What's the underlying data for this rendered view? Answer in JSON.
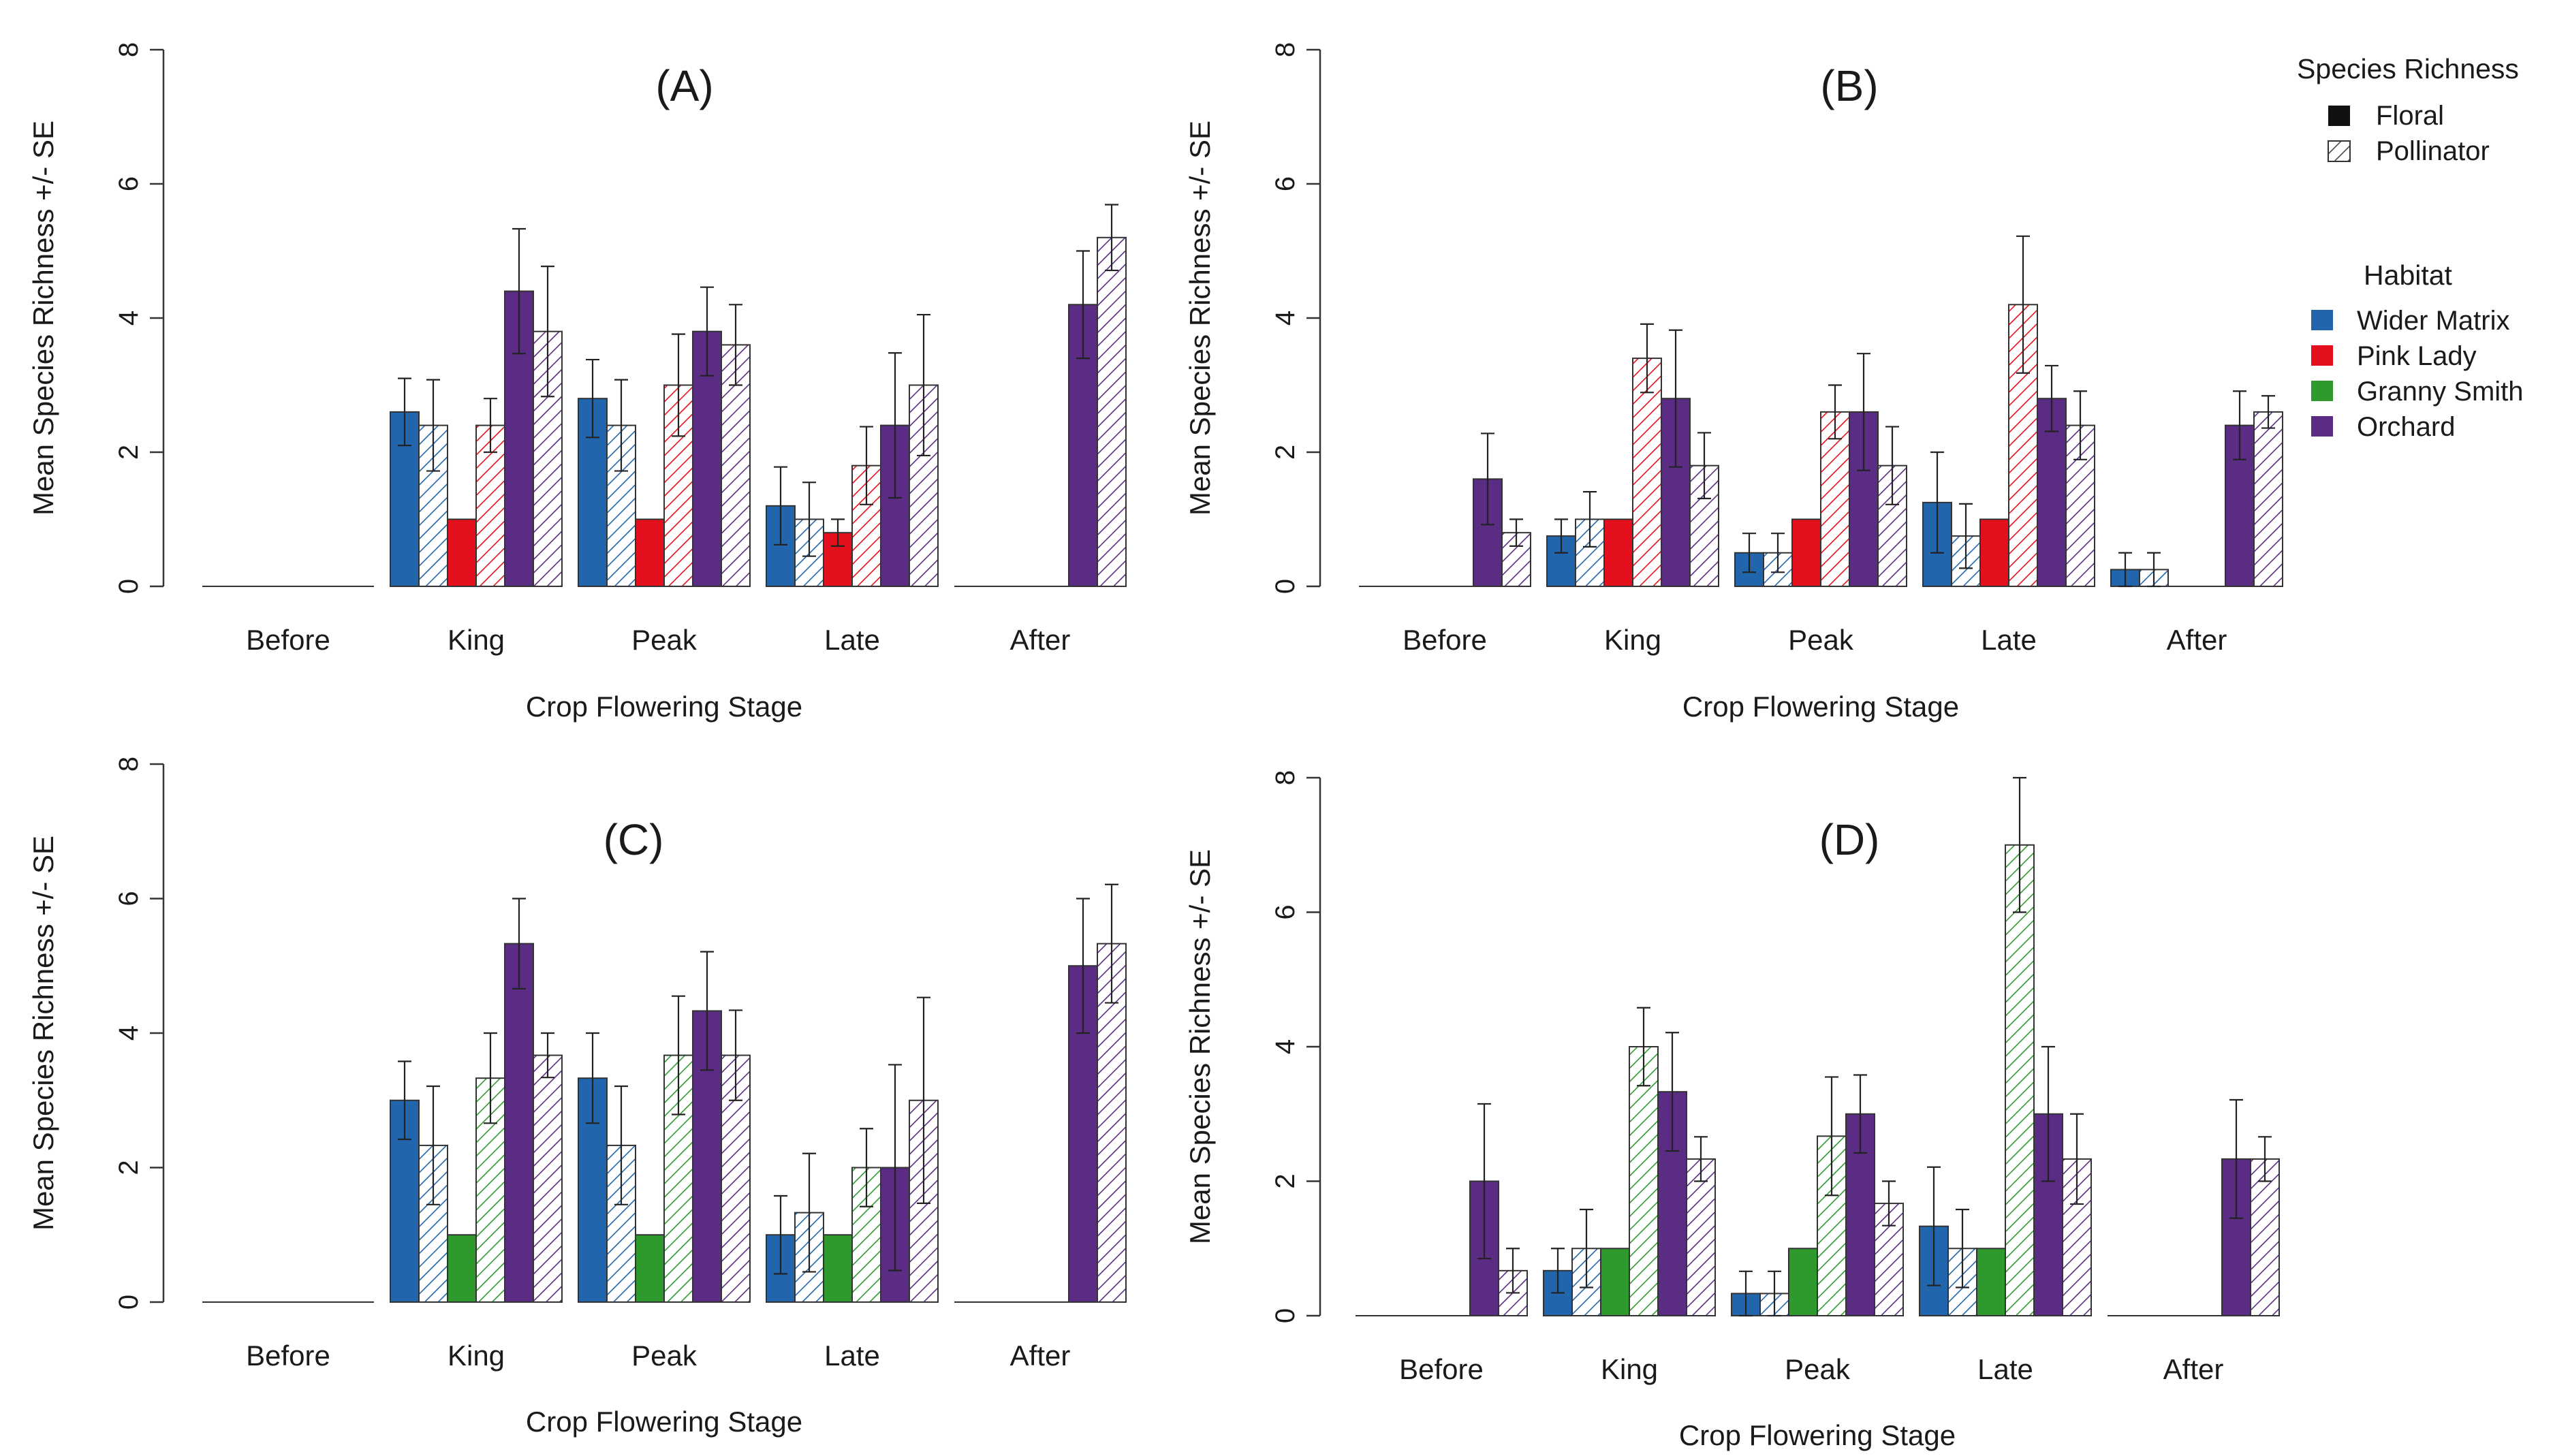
{
  "figure": {
    "colors": {
      "Wider Matrix": "#2166ac",
      "Pink Lady": "#e4101e",
      "Granny Smith": "#2e9a2e",
      "Orchard": "#5b2c83"
    }
  },
  "legend": {
    "richness_title": "Species Richness",
    "richness_items": [
      "Floral",
      "Pollinator"
    ],
    "habitat_title": "Habitat",
    "habitat_items": [
      "Wider Matrix",
      "Pink Lady",
      "Granny Smith",
      "Orchard"
    ]
  },
  "chart_data": [
    {
      "type": "bar",
      "panel": "A",
      "title": "(A)",
      "xlabel": "Crop Flowering Stage",
      "ylabel": "Mean Species Richness +/- SE",
      "ylim": [
        0,
        8
      ],
      "yticks": [
        0,
        2,
        4,
        6,
        8
      ],
      "categories": [
        "Before",
        "King",
        "Peak",
        "Late",
        "After"
      ],
      "series": [
        {
          "habitat": "Wider Matrix",
          "type": "Floral",
          "values": [
            0,
            2.6,
            2.8,
            1.2,
            0
          ],
          "se": [
            0,
            0.5,
            0.58,
            0.58,
            0
          ]
        },
        {
          "habitat": "Wider Matrix",
          "type": "Pollinator",
          "values": [
            0,
            2.4,
            2.4,
            1.0,
            0
          ],
          "se": [
            0,
            0.68,
            0.68,
            0.55,
            0
          ]
        },
        {
          "habitat": "Pink Lady",
          "type": "Floral",
          "values": [
            0,
            1.0,
            1.0,
            0.8,
            0
          ],
          "se": [
            0,
            0,
            0,
            0.2,
            0
          ]
        },
        {
          "habitat": "Pink Lady",
          "type": "Pollinator",
          "values": [
            0,
            2.4,
            3.0,
            1.8,
            0
          ],
          "se": [
            0,
            0.4,
            0.76,
            0.58,
            0
          ]
        },
        {
          "habitat": "Orchard",
          "type": "Floral",
          "values": [
            0,
            4.4,
            3.8,
            2.4,
            4.2
          ],
          "se": [
            0,
            0.93,
            0.66,
            1.08,
            0.8
          ]
        },
        {
          "habitat": "Orchard",
          "type": "Pollinator",
          "values": [
            0,
            3.8,
            3.6,
            3.0,
            5.2
          ],
          "se": [
            0,
            0.97,
            0.6,
            1.05,
            0.49
          ]
        }
      ]
    },
    {
      "type": "bar",
      "panel": "B",
      "title": "(B)",
      "xlabel": "Crop Flowering Stage",
      "ylabel": "Mean Species Richness +/- SE",
      "ylim": [
        0,
        8
      ],
      "yticks": [
        0,
        2,
        4,
        6,
        8
      ],
      "categories": [
        "Before",
        "King",
        "Peak",
        "Late",
        "After"
      ],
      "series": [
        {
          "habitat": "Wider Matrix",
          "type": "Floral",
          "values": [
            0,
            0.75,
            0.5,
            1.25,
            0.25
          ],
          "se": [
            0,
            0.25,
            0.29,
            0.75,
            0.25
          ]
        },
        {
          "habitat": "Wider Matrix",
          "type": "Pollinator",
          "values": [
            0,
            1.0,
            0.5,
            0.75,
            0.25
          ],
          "se": [
            0,
            0.41,
            0.29,
            0.48,
            0.25
          ]
        },
        {
          "habitat": "Pink Lady",
          "type": "Floral",
          "values": [
            0,
            1.0,
            1.0,
            1.0,
            0
          ],
          "se": [
            0,
            0,
            0,
            0,
            0
          ]
        },
        {
          "habitat": "Pink Lady",
          "type": "Pollinator",
          "values": [
            0,
            3.4,
            2.6,
            4.2,
            0
          ],
          "se": [
            0,
            0.51,
            0.4,
            1.02,
            0
          ]
        },
        {
          "habitat": "Orchard",
          "type": "Floral",
          "values": [
            1.6,
            2.8,
            2.6,
            2.8,
            2.4
          ],
          "se": [
            0.68,
            1.02,
            0.87,
            0.49,
            0.51
          ]
        },
        {
          "habitat": "Orchard",
          "type": "Pollinator",
          "values": [
            0.8,
            1.8,
            1.8,
            2.4,
            2.6
          ],
          "se": [
            0.2,
            0.49,
            0.58,
            0.51,
            0.24
          ]
        }
      ]
    },
    {
      "type": "bar",
      "panel": "C",
      "title": "(C)",
      "xlabel": "Crop Flowering Stage",
      "ylabel": "Mean Species Richness +/- SE",
      "ylim": [
        0,
        8
      ],
      "yticks": [
        0,
        2,
        4,
        6,
        8
      ],
      "categories": [
        "Before",
        "King",
        "Peak",
        "Late",
        "After"
      ],
      "series": [
        {
          "habitat": "Wider Matrix",
          "type": "Floral",
          "values": [
            0,
            3.0,
            3.33,
            1.0,
            0
          ],
          "se": [
            0,
            0.58,
            0.67,
            0.58,
            0
          ]
        },
        {
          "habitat": "Wider Matrix",
          "type": "Pollinator",
          "values": [
            0,
            2.33,
            2.33,
            1.33,
            0
          ],
          "se": [
            0,
            0.88,
            0.88,
            0.88,
            0
          ]
        },
        {
          "habitat": "Granny Smith",
          "type": "Floral",
          "values": [
            0,
            1.0,
            1.0,
            1.0,
            0
          ],
          "se": [
            0,
            0,
            0,
            0,
            0
          ]
        },
        {
          "habitat": "Granny Smith",
          "type": "Pollinator",
          "values": [
            0,
            3.33,
            3.67,
            2.0,
            0
          ],
          "se": [
            0,
            0.67,
            0.88,
            0.58,
            0
          ]
        },
        {
          "habitat": "Orchard",
          "type": "Floral",
          "values": [
            0,
            5.33,
            4.33,
            2.0,
            5.0
          ],
          "se": [
            0,
            0.67,
            0.88,
            1.53,
            1.0
          ]
        },
        {
          "habitat": "Orchard",
          "type": "Pollinator",
          "values": [
            0,
            3.67,
            3.67,
            3.0,
            5.33
          ],
          "se": [
            0,
            0.33,
            0.67,
            1.53,
            0.88
          ]
        }
      ]
    },
    {
      "type": "bar",
      "panel": "D",
      "title": "(D)",
      "xlabel": "Crop Flowering Stage",
      "ylabel": "Mean Species Richness +/- SE",
      "ylim": [
        0,
        8
      ],
      "yticks": [
        0,
        2,
        4,
        6,
        8
      ],
      "categories": [
        "Before",
        "King",
        "Peak",
        "Late",
        "After"
      ],
      "series": [
        {
          "habitat": "Wider Matrix",
          "type": "Floral",
          "values": [
            0,
            0.67,
            0.33,
            1.33,
            0
          ],
          "se": [
            0,
            0.33,
            0.33,
            0.88,
            0
          ]
        },
        {
          "habitat": "Wider Matrix",
          "type": "Pollinator",
          "values": [
            0,
            1.0,
            0.33,
            1.0,
            0
          ],
          "se": [
            0,
            0.58,
            0.33,
            0.58,
            0
          ]
        },
        {
          "habitat": "Granny Smith",
          "type": "Floral",
          "values": [
            0,
            1.0,
            1.0,
            1.0,
            0
          ],
          "se": [
            0,
            0,
            0,
            0,
            0
          ]
        },
        {
          "habitat": "Granny Smith",
          "type": "Pollinator",
          "values": [
            0,
            4.0,
            2.67,
            7.0,
            0
          ],
          "se": [
            0,
            0.58,
            0.88,
            1.0,
            0
          ]
        },
        {
          "habitat": "Orchard",
          "type": "Floral",
          "values": [
            2.0,
            3.33,
            3.0,
            3.0,
            2.33
          ],
          "se": [
            1.15,
            0.88,
            0.58,
            1.0,
            0.88
          ]
        },
        {
          "habitat": "Orchard",
          "type": "Pollinator",
          "values": [
            0.67,
            2.33,
            1.67,
            2.33,
            2.33
          ],
          "se": [
            0.33,
            0.33,
            0.33,
            0.67,
            0.33
          ]
        }
      ]
    }
  ]
}
